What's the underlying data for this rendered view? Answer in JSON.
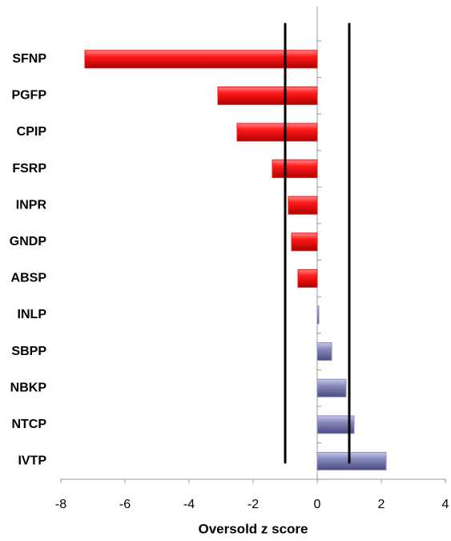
{
  "chart_data": {
    "type": "barh",
    "xlabel": "Oversold z score",
    "categories": [
      "SFNP",
      "PGFP",
      "CPIP",
      "FSRP",
      "INPR",
      "GNDP",
      "ABSP",
      "INLP",
      "SBPP",
      "NBKP",
      "NTCP",
      "IVTP"
    ],
    "values": [
      -7.25,
      -3.1,
      -2.5,
      -1.4,
      -0.9,
      -0.8,
      -0.6,
      0.05,
      0.45,
      0.9,
      1.15,
      2.15
    ],
    "negative_color": "#ee1111",
    "positive_color": "#8a8cc0",
    "reference_lines": [
      -1,
      1
    ],
    "xlim": [
      -8,
      4
    ],
    "xticks": [
      -8,
      -6,
      -4,
      -2,
      0,
      2,
      4
    ]
  }
}
